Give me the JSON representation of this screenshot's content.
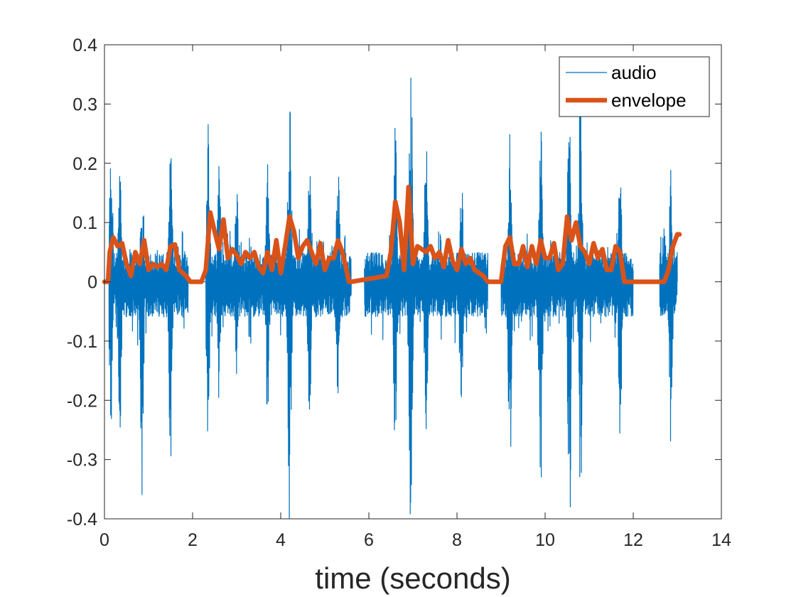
{
  "chart_data": {
    "type": "line",
    "title": "",
    "xlabel": "time (seconds)",
    "ylabel": "",
    "xlim": [
      0,
      14
    ],
    "ylim": [
      -0.4,
      0.4
    ],
    "xticks": [
      0,
      2,
      4,
      6,
      8,
      10,
      12,
      14
    ],
    "xtick_labels": [
      "0",
      "2",
      "4",
      "6",
      "8",
      "10",
      "12",
      "14"
    ],
    "yticks": [
      -0.4,
      -0.3,
      -0.2,
      -0.1,
      0,
      0.1,
      0.2,
      0.3,
      0.4
    ],
    "ytick_labels": [
      "-0.4",
      "-0.3",
      "-0.2",
      "-0.1",
      "0",
      "0.1",
      "0.2",
      "0.3",
      "0.4"
    ],
    "grid": false,
    "legend_position": "top-right",
    "series": [
      {
        "name": "audio",
        "color": "#0072BD",
        "style": "thin line (dense waveform)",
        "bursts": [
          {
            "t": [
              0.1,
              1.9
            ],
            "peaks": [
              [
                0.15,
                0.24,
                -0.26
              ],
              [
                0.35,
                0.2,
                -0.25
              ],
              [
                0.85,
                0.14,
                -0.36
              ],
              [
                1.5,
                0.26,
                -0.32
              ]
            ]
          },
          {
            "t": [
              2.3,
              5.6
            ],
            "peaks": [
              [
                2.35,
                0.32,
                -0.28
              ],
              [
                2.6,
                0.2,
                -0.2
              ],
              [
                3.0,
                0.17,
                -0.18
              ],
              [
                3.7,
                0.2,
                -0.26
              ],
              [
                4.2,
                0.33,
                -0.45
              ],
              [
                4.65,
                0.22,
                -0.25
              ],
              [
                5.3,
                0.2,
                -0.2
              ]
            ]
          },
          {
            "t": [
              5.9,
              8.7
            ],
            "peaks": [
              [
                6.6,
                0.27,
                -0.31
              ],
              [
                6.95,
                0.4,
                -0.41
              ],
              [
                7.3,
                0.25,
                -0.25
              ],
              [
                8.1,
                0.21,
                -0.21
              ]
            ]
          },
          {
            "t": [
              9.0,
              12.0
            ],
            "peaks": [
              [
                9.2,
                0.29,
                -0.36
              ],
              [
                9.9,
                0.27,
                -0.4
              ],
              [
                10.55,
                0.33,
                -0.45
              ],
              [
                10.8,
                0.35,
                -0.41
              ],
              [
                11.7,
                0.19,
                -0.27
              ]
            ]
          },
          {
            "t": [
              12.6,
              13.0
            ],
            "peaks": [
              [
                12.85,
                0.21,
                -0.28
              ]
            ]
          }
        ]
      },
      {
        "name": "envelope",
        "color": "#D95319",
        "style": "thick line",
        "x": [
          0.0,
          0.08,
          0.12,
          0.2,
          0.3,
          0.4,
          0.5,
          0.6,
          0.7,
          0.8,
          0.9,
          1.0,
          1.1,
          1.2,
          1.3,
          1.4,
          1.5,
          1.6,
          1.7,
          1.85,
          1.95,
          2.2,
          2.3,
          2.4,
          2.5,
          2.6,
          2.7,
          2.8,
          2.9,
          3.0,
          3.1,
          3.2,
          3.3,
          3.4,
          3.5,
          3.6,
          3.7,
          3.8,
          3.9,
          4.0,
          4.1,
          4.2,
          4.3,
          4.4,
          4.5,
          4.6,
          4.7,
          4.8,
          4.9,
          5.0,
          5.1,
          5.2,
          5.3,
          5.4,
          5.55,
          5.6,
          6.0,
          6.4,
          6.5,
          6.6,
          6.7,
          6.8,
          6.9,
          7.0,
          7.1,
          7.2,
          7.3,
          7.4,
          7.5,
          7.6,
          7.7,
          7.8,
          7.9,
          8.0,
          8.1,
          8.2,
          8.3,
          8.4,
          8.6,
          8.7,
          9.0,
          9.1,
          9.2,
          9.3,
          9.4,
          9.5,
          9.6,
          9.7,
          9.8,
          9.9,
          10.0,
          10.1,
          10.2,
          10.3,
          10.4,
          10.5,
          10.6,
          10.7,
          10.8,
          10.9,
          11.0,
          11.1,
          11.2,
          11.3,
          11.4,
          11.5,
          11.6,
          11.7,
          11.8,
          11.9,
          12.0,
          12.1,
          12.4,
          12.7,
          12.75,
          12.8,
          12.9,
          13.0,
          13.05
        ],
        "y": [
          0.0,
          0.0,
          0.05,
          0.075,
          0.06,
          0.065,
          0.03,
          0.01,
          0.05,
          0.03,
          0.07,
          0.02,
          0.03,
          0.025,
          0.03,
          0.02,
          0.06,
          0.063,
          0.02,
          0.01,
          0.0,
          0.0,
          0.02,
          0.117,
          0.085,
          0.055,
          0.105,
          0.04,
          0.055,
          0.045,
          0.03,
          0.05,
          0.04,
          0.05,
          0.025,
          0.015,
          0.05,
          0.02,
          0.07,
          0.015,
          0.06,
          0.11,
          0.085,
          0.04,
          0.06,
          0.07,
          0.05,
          0.03,
          0.065,
          0.02,
          0.04,
          0.04,
          0.07,
          0.05,
          0.0,
          0.0,
          0.005,
          0.01,
          0.05,
          0.135,
          0.1,
          0.02,
          0.16,
          0.03,
          0.06,
          0.055,
          0.05,
          0.06,
          0.04,
          0.05,
          0.025,
          0.07,
          0.035,
          0.02,
          0.055,
          0.03,
          0.04,
          0.02,
          0.01,
          0.0,
          0.0,
          0.06,
          0.075,
          0.03,
          0.03,
          0.06,
          0.025,
          0.06,
          0.03,
          0.07,
          0.04,
          0.04,
          0.065,
          0.02,
          0.03,
          0.11,
          0.07,
          0.1,
          0.06,
          0.05,
          0.03,
          0.065,
          0.04,
          0.055,
          0.02,
          0.02,
          0.06,
          0.05,
          0.0,
          0.0,
          0.0,
          0.0,
          0.0,
          0.0,
          0.01,
          0.02,
          0.06,
          0.08,
          0.08
        ]
      }
    ]
  }
}
